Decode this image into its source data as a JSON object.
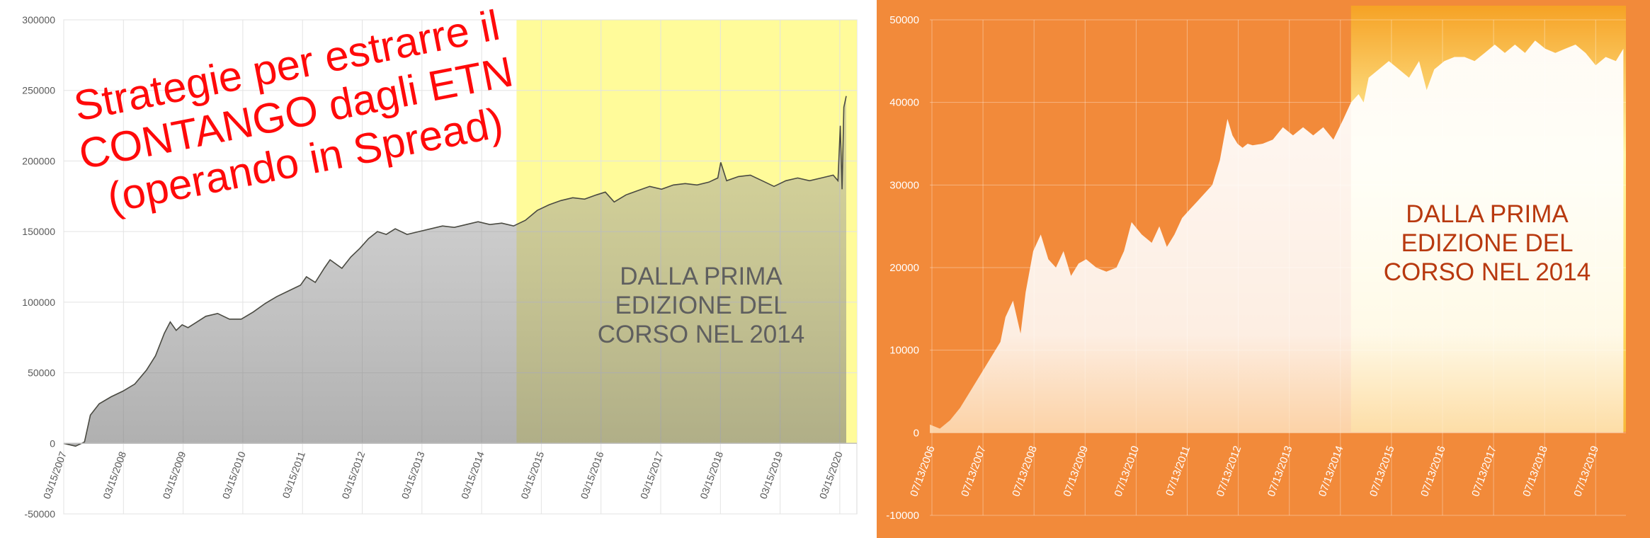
{
  "title_overlay": [
    "Strategie per estrarre il",
    "CONTANGO dagli ETN",
    "(operando in Spread)"
  ],
  "annotation_lines": [
    "DALLA PRIMA",
    "EDIZIONE DEL",
    "CORSO NEL 2014"
  ],
  "chart_data": [
    {
      "type": "area",
      "y_ticks": [
        "300000",
        "250000",
        "200000",
        "150000",
        "100000",
        "50000",
        "0",
        "-50000"
      ],
      "x_ticks": [
        "03/15/2007",
        "03/15/2008",
        "03/15/2009",
        "03/15/2010",
        "03/15/2011",
        "03/15/2012",
        "03/15/2013",
        "03/15/2014",
        "03/15/2015",
        "03/15/2016",
        "03/15/2017",
        "03/15/2018",
        "03/15/2019",
        "03/15/2020"
      ],
      "ylim": [
        -50000,
        300000
      ],
      "xlim": [
        2007.0,
        2020.4
      ],
      "grid": true,
      "highlight_from": 2014.65,
      "colors": {
        "area": "#bdbdbd",
        "line": "#4a4a42",
        "highlight": "#fffb9a"
      },
      "series": [
        {
          "x": [
            2007.0,
            2007.2,
            2007.35,
            2007.45,
            2007.6,
            2007.8,
            2008.0,
            2008.2,
            2008.4,
            2008.55,
            2008.7,
            2008.8,
            2008.9,
            2009.0,
            2009.1,
            2009.25,
            2009.4,
            2009.6,
            2009.8,
            2010.0,
            2010.2,
            2010.4,
            2010.6,
            2010.8,
            2011.0,
            2011.1,
            2011.25,
            2011.4,
            2011.5,
            2011.7,
            2011.85,
            2012.0,
            2012.15,
            2012.3,
            2012.45,
            2012.6,
            2012.8,
            2013.0,
            2013.2,
            2013.4,
            2013.6,
            2013.8,
            2014.0,
            2014.2,
            2014.4,
            2014.6,
            2014.8,
            2015.0,
            2015.2,
            2015.4,
            2015.6,
            2015.8,
            2016.0,
            2016.15,
            2016.3,
            2016.5,
            2016.7,
            2016.9,
            2017.1,
            2017.3,
            2017.5,
            2017.7,
            2017.9,
            2018.05,
            2018.1,
            2018.2,
            2018.4,
            2018.6,
            2018.8,
            2019.0,
            2019.2,
            2019.4,
            2019.6,
            2019.8,
            2020.0,
            2020.08,
            2020.12,
            2020.15,
            2020.18,
            2020.22
          ],
          "y": [
            0,
            -2000,
            1000,
            20000,
            28000,
            33000,
            37000,
            42000,
            52000,
            62000,
            78000,
            86000,
            80000,
            84000,
            82000,
            86000,
            90000,
            92000,
            88000,
            88000,
            93000,
            99000,
            104000,
            108000,
            112000,
            118000,
            114000,
            124000,
            130000,
            124000,
            132000,
            138000,
            145000,
            150000,
            148000,
            152000,
            148000,
            150000,
            152000,
            154000,
            153000,
            155000,
            157000,
            155000,
            156000,
            154000,
            158000,
            165000,
            169000,
            172000,
            174000,
            173000,
            176000,
            178000,
            171000,
            176000,
            179000,
            182000,
            180000,
            183000,
            184000,
            183000,
            185000,
            188000,
            199000,
            186000,
            189000,
            190000,
            186000,
            182000,
            186000,
            188000,
            186000,
            188000,
            190000,
            186000,
            225000,
            180000,
            238000,
            246000
          ]
        }
      ]
    },
    {
      "type": "area",
      "y_ticks": [
        "50000",
        "40000",
        "30000",
        "20000",
        "10000",
        "0",
        "-10000"
      ],
      "x_ticks": [
        "07/13/2006",
        "07/13/2007",
        "07/13/2008",
        "07/13/2009",
        "07/13/2010",
        "07/13/2011",
        "07/13/2012",
        "07/13/2013",
        "07/13/2014",
        "07/13/2015",
        "07/13/2016",
        "07/13/2017",
        "07/13/2018",
        "07/13/2019"
      ],
      "ylim": [
        -10000,
        50000
      ],
      "xlim": [
        2006.5,
        2020.3
      ],
      "grid": true,
      "highlight_from": 2014.85,
      "colors": {
        "area": "#ffffff",
        "background": "#f28a3a",
        "highlight": "#fff59a"
      },
      "series": [
        {
          "x": [
            2006.5,
            2006.7,
            2006.9,
            2007.1,
            2007.3,
            2007.5,
            2007.7,
            2007.9,
            2008.0,
            2008.15,
            2008.3,
            2008.4,
            2008.55,
            2008.7,
            2008.85,
            2009.0,
            2009.15,
            2009.3,
            2009.45,
            2009.6,
            2009.8,
            2010.0,
            2010.2,
            2010.35,
            2010.5,
            2010.7,
            2010.9,
            2011.05,
            2011.2,
            2011.35,
            2011.5,
            2011.65,
            2011.8,
            2011.95,
            2012.1,
            2012.25,
            2012.4,
            2012.5,
            2012.6,
            2012.7,
            2012.8,
            2012.9,
            2013.1,
            2013.3,
            2013.5,
            2013.7,
            2013.9,
            2014.1,
            2014.3,
            2014.5,
            2014.7,
            2014.85,
            2015.0,
            2015.1,
            2015.2,
            2015.4,
            2015.6,
            2015.8,
            2016.0,
            2016.2,
            2016.35,
            2016.5,
            2016.7,
            2016.9,
            2017.1,
            2017.3,
            2017.5,
            2017.7,
            2017.9,
            2018.1,
            2018.3,
            2018.5,
            2018.7,
            2018.9,
            2019.1,
            2019.3,
            2019.5,
            2019.7,
            2019.9,
            2020.1,
            2020.25
          ],
          "y": [
            1000,
            500,
            1500,
            3000,
            5000,
            7000,
            9000,
            11000,
            14000,
            16000,
            12000,
            17000,
            22000,
            24000,
            21000,
            20000,
            22000,
            19000,
            20500,
            21000,
            20000,
            19500,
            20000,
            22000,
            25500,
            24000,
            23000,
            25000,
            22500,
            24000,
            26000,
            27000,
            28000,
            29000,
            30000,
            33000,
            38000,
            36000,
            35000,
            34500,
            35000,
            34800,
            35000,
            35500,
            37000,
            36000,
            37000,
            36000,
            37000,
            35500,
            38000,
            40000,
            41000,
            40000,
            43000,
            44000,
            45000,
            44000,
            43000,
            45000,
            41500,
            44000,
            45000,
            45500,
            45500,
            45000,
            46000,
            47000,
            46000,
            47000,
            46000,
            47500,
            46500,
            46000,
            46500,
            47000,
            46000,
            44500,
            45500,
            45000,
            46500
          ]
        }
      ]
    }
  ]
}
